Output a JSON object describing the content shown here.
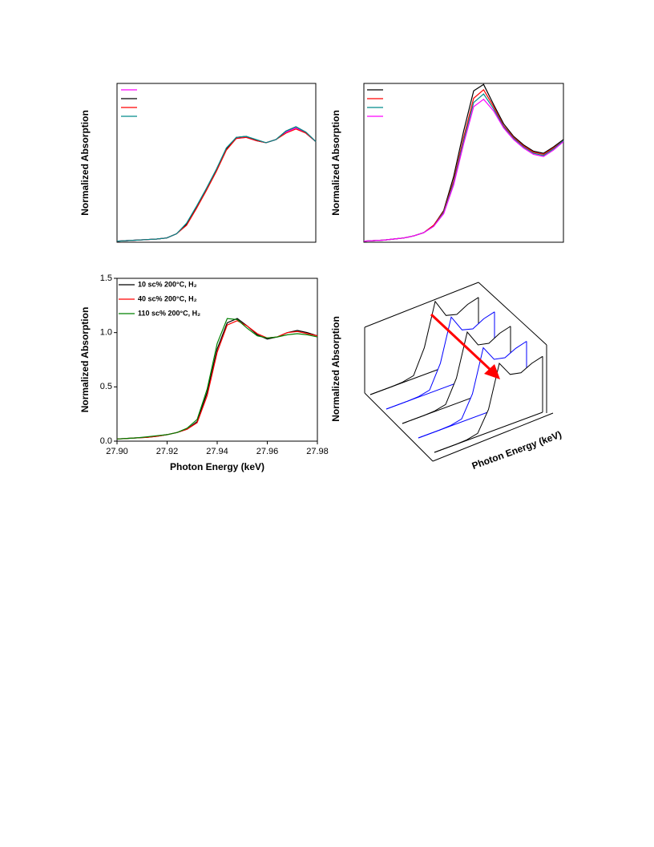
{
  "chart_data": [
    {
      "type": "line",
      "ylabel": "Normalized Absorption",
      "xlim": [
        0,
        100
      ],
      "ylim": [
        0,
        1.5
      ],
      "x": [
        0,
        5,
        10,
        15,
        20,
        25,
        30,
        35,
        40,
        45,
        50,
        55,
        60,
        65,
        70,
        75,
        80,
        85,
        90,
        95,
        100
      ],
      "series": [
        {
          "color": "#ff00ff",
          "values": [
            0.01,
            0.015,
            0.02,
            0.025,
            0.03,
            0.04,
            0.08,
            0.17,
            0.33,
            0.5,
            0.68,
            0.88,
            0.98,
            0.99,
            0.96,
            0.94,
            0.97,
            1.04,
            1.08,
            1.03,
            0.95
          ]
        },
        {
          "color": "#000000",
          "values": [
            0.01,
            0.015,
            0.02,
            0.025,
            0.03,
            0.04,
            0.08,
            0.17,
            0.33,
            0.5,
            0.68,
            0.88,
            0.99,
            1.0,
            0.96,
            0.94,
            0.97,
            1.05,
            1.09,
            1.04,
            0.95
          ]
        },
        {
          "color": "#ff0000",
          "values": [
            0.01,
            0.015,
            0.02,
            0.025,
            0.03,
            0.04,
            0.08,
            0.16,
            0.32,
            0.49,
            0.67,
            0.87,
            0.98,
            0.99,
            0.96,
            0.94,
            0.97,
            1.03,
            1.07,
            1.03,
            0.95
          ]
        },
        {
          "color": "#008b8b",
          "values": [
            0.01,
            0.015,
            0.02,
            0.025,
            0.03,
            0.04,
            0.08,
            0.18,
            0.34,
            0.51,
            0.69,
            0.89,
            0.99,
            1.0,
            0.97,
            0.94,
            0.97,
            1.05,
            1.09,
            1.04,
            0.95
          ]
        }
      ]
    },
    {
      "type": "line",
      "ylabel": "Normalized Absorption",
      "xlim": [
        0,
        100
      ],
      "ylim": [
        0,
        1.5
      ],
      "x": [
        0,
        5,
        10,
        15,
        20,
        25,
        30,
        35,
        40,
        45,
        50,
        55,
        60,
        65,
        70,
        75,
        80,
        85,
        90,
        95,
        100
      ],
      "series": [
        {
          "color": "#000000",
          "values": [
            0.01,
            0.015,
            0.02,
            0.03,
            0.04,
            0.06,
            0.09,
            0.16,
            0.3,
            0.62,
            1.05,
            1.43,
            1.49,
            1.3,
            1.12,
            1.0,
            0.92,
            0.86,
            0.84,
            0.9,
            0.97
          ]
        },
        {
          "color": "#ff0000",
          "values": [
            0.01,
            0.015,
            0.02,
            0.03,
            0.04,
            0.06,
            0.09,
            0.16,
            0.29,
            0.58,
            0.99,
            1.36,
            1.44,
            1.28,
            1.1,
            0.99,
            0.91,
            0.85,
            0.83,
            0.89,
            0.96
          ]
        },
        {
          "color": "#008b8b",
          "values": [
            0.01,
            0.015,
            0.02,
            0.03,
            0.04,
            0.06,
            0.09,
            0.15,
            0.28,
            0.56,
            0.96,
            1.32,
            1.4,
            1.26,
            1.09,
            0.98,
            0.9,
            0.84,
            0.82,
            0.88,
            0.96
          ]
        },
        {
          "color": "#ff00ff",
          "values": [
            0.01,
            0.015,
            0.02,
            0.03,
            0.04,
            0.06,
            0.09,
            0.15,
            0.27,
            0.54,
            0.93,
            1.28,
            1.35,
            1.24,
            1.08,
            0.97,
            0.89,
            0.83,
            0.81,
            0.87,
            0.95
          ]
        }
      ]
    },
    {
      "type": "line",
      "xlabel": "Photon Energy (keV)",
      "ylabel": "Normalized Absorption",
      "xlim": [
        27.9,
        27.98
      ],
      "ylim": [
        0,
        1.5
      ],
      "xticks": [
        {
          "value": 27.9,
          "label": "27.90"
        },
        27.92,
        27.94,
        27.96,
        27.98
      ],
      "yticks": [
        {
          "value": 0,
          "label": "0.0"
        },
        0.5,
        {
          "value": 1,
          "label": "1.0"
        },
        1.5
      ],
      "x": [
        27.9,
        27.904,
        27.908,
        27.912,
        27.916,
        27.92,
        27.924,
        27.928,
        27.932,
        27.936,
        27.94,
        27.944,
        27.948,
        27.952,
        27.956,
        27.96,
        27.964,
        27.968,
        27.972,
        27.976,
        27.98
      ],
      "series": [
        {
          "name": "10 sc% 200°C, H₂",
          "color": "#000000",
          "values": [
            0.02,
            0.025,
            0.03,
            0.035,
            0.045,
            0.06,
            0.08,
            0.11,
            0.18,
            0.45,
            0.85,
            1.09,
            1.13,
            1.06,
            0.98,
            0.94,
            0.96,
            1.0,
            1.02,
            1.0,
            0.97
          ]
        },
        {
          "name": "40 sc% 200°C, H₂",
          "color": "#ff0000",
          "values": [
            0.02,
            0.025,
            0.03,
            0.035,
            0.045,
            0.06,
            0.08,
            0.11,
            0.17,
            0.42,
            0.82,
            1.07,
            1.11,
            1.06,
            0.99,
            0.95,
            0.96,
            1.0,
            1.01,
            0.99,
            0.97
          ]
        },
        {
          "name": "110 sc% 200°C, H₂",
          "color": "#008000",
          "values": [
            0.02,
            0.025,
            0.03,
            0.04,
            0.05,
            0.06,
            0.08,
            0.12,
            0.2,
            0.48,
            0.9,
            1.13,
            1.12,
            1.04,
            0.97,
            0.95,
            0.96,
            0.98,
            0.99,
            0.98,
            0.96
          ]
        }
      ]
    },
    {
      "type": "waterfall",
      "xlabel": "Photon Energy (keV)",
      "ylabel": "Normalized Absorption",
      "xlim": [
        0,
        100
      ],
      "ylim": [
        0,
        1.2
      ],
      "x": [
        0,
        10,
        20,
        30,
        40,
        50,
        60,
        70,
        80,
        90,
        100
      ],
      "series": [
        {
          "color": "#000000",
          "values": [
            0,
            0,
            0,
            0.01,
            0.05,
            0.45,
            1.15,
            0.85,
            0.8,
            0.9,
            0.95
          ]
        },
        {
          "color": "#0000ff",
          "values": [
            0,
            0,
            0,
            0.01,
            0.05,
            0.43,
            1.13,
            0.85,
            0.8,
            0.9,
            0.95
          ]
        },
        {
          "color": "#000000",
          "values": [
            0,
            0,
            0,
            0.01,
            0.05,
            0.42,
            1.12,
            0.84,
            0.8,
            0.9,
            0.95
          ]
        },
        {
          "color": "#0000ff",
          "values": [
            0,
            0,
            0,
            0.01,
            0.05,
            0.4,
            1.1,
            0.84,
            0.8,
            0.89,
            0.94
          ]
        },
        {
          "color": "#000000",
          "values": [
            0,
            0,
            0,
            0.01,
            0.05,
            0.38,
            1.08,
            0.83,
            0.79,
            0.88,
            0.93
          ]
        }
      ]
    }
  ]
}
